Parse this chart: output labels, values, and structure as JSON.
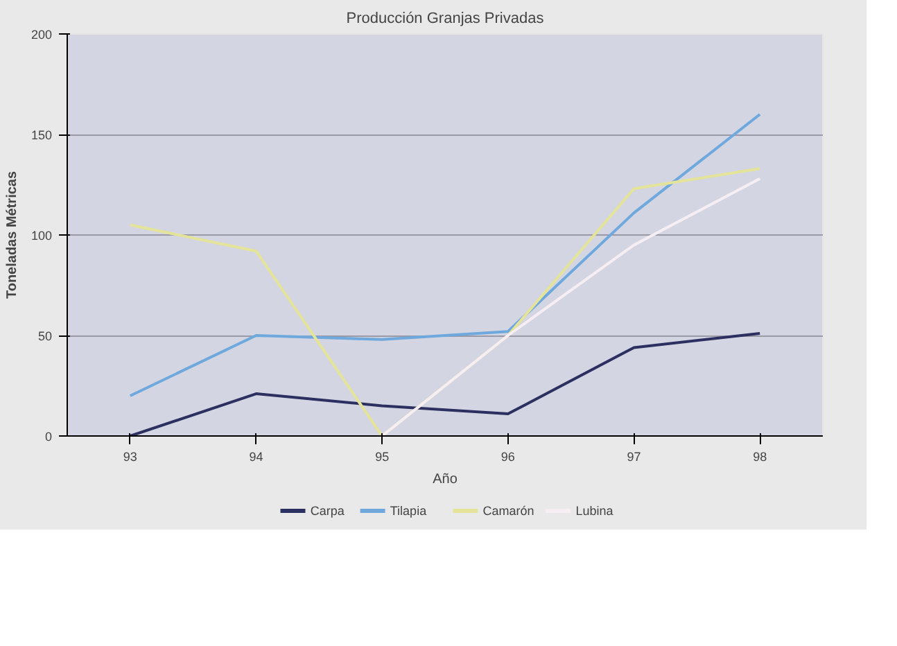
{
  "chart_data": {
    "type": "line",
    "title": "Producción Granjas Privadas",
    "xlabel": "Año",
    "ylabel": "Toneladas Métricas",
    "categories": [
      "93",
      "94",
      "95",
      "96",
      "97",
      "98"
    ],
    "series": [
      {
        "name": "Carpa",
        "color": "#2b3060",
        "values": [
          0,
          21,
          15,
          11,
          44,
          51
        ]
      },
      {
        "name": "Tilapia",
        "color": "#6fa8dc",
        "values": [
          20,
          50,
          48,
          52,
          111,
          160
        ]
      },
      {
        "name": "Camarón",
        "color": "#e3e39a",
        "values": [
          105,
          92,
          0,
          50,
          123,
          133
        ]
      },
      {
        "name": "Lubina",
        "color": "#f6eef2",
        "values": [
          null,
          null,
          0,
          50,
          95,
          128
        ]
      }
    ],
    "ylim": [
      0,
      200
    ],
    "yticks": [
      0,
      50,
      100,
      150,
      200
    ],
    "grid": "y",
    "legend": "bottom",
    "marker": "none",
    "line_style": "solid"
  }
}
